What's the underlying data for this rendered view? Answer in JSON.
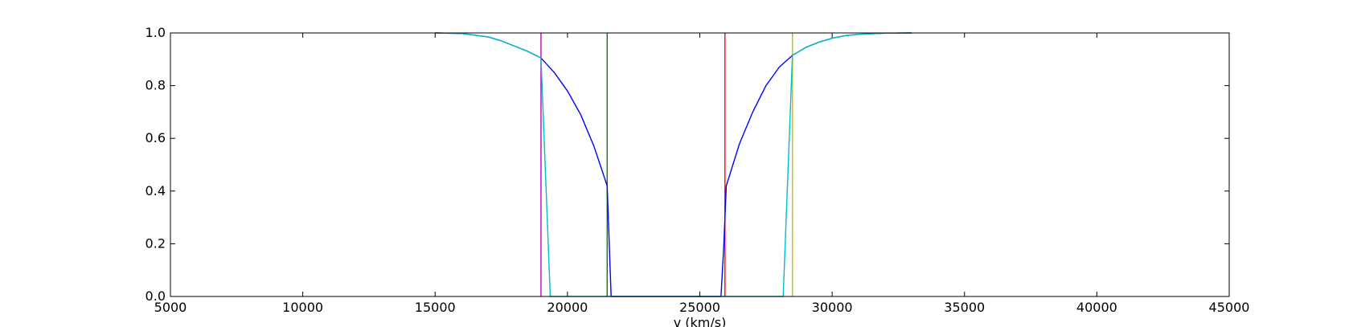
{
  "chart_data": {
    "type": "line",
    "title": "",
    "xlabel": "v (km/s)",
    "ylabel": "",
    "xlim": [
      5000,
      45000
    ],
    "ylim": [
      0.0,
      1.0
    ],
    "grid": false,
    "x_ticks": [
      5000,
      10000,
      15000,
      20000,
      25000,
      30000,
      35000,
      40000,
      45000
    ],
    "x_tick_labels": [
      "5000",
      "10000",
      "15000",
      "20000",
      "25000",
      "30000",
      "35000",
      "40000",
      "45000"
    ],
    "y_ticks": [
      0.0,
      0.2,
      0.4,
      0.6,
      0.8,
      1.0
    ],
    "y_tick_labels": [
      "0.0",
      "0.2",
      "0.4",
      "0.6",
      "0.8",
      "1.0"
    ],
    "series": [
      {
        "color": "#0000ff",
        "x": [
          15000,
          16000,
          17000,
          17500,
          18000,
          18500,
          19000,
          19500,
          20000,
          20500,
          21000,
          21500,
          21650,
          25800,
          25900,
          26000,
          26500,
          27000,
          27500,
          28000,
          28500,
          29000,
          29500,
          30000,
          30500,
          31000,
          32000,
          33000
        ],
        "y": [
          1.0,
          0.998,
          0.985,
          0.97,
          0.95,
          0.93,
          0.905,
          0.85,
          0.78,
          0.69,
          0.57,
          0.42,
          0.0,
          0.0,
          0.18,
          0.42,
          0.58,
          0.7,
          0.8,
          0.87,
          0.915,
          0.945,
          0.965,
          0.98,
          0.99,
          0.995,
          0.999,
          1.0
        ]
      },
      {
        "color": "#00bfbf",
        "x": [
          15000,
          16000,
          17000,
          17500,
          18000,
          18500,
          19000,
          19350,
          28150,
          28500,
          29000,
          29500,
          30000,
          30500,
          31000,
          32000,
          33000
        ],
        "y": [
          1.0,
          0.998,
          0.985,
          0.97,
          0.95,
          0.93,
          0.905,
          0.0,
          0.0,
          0.915,
          0.945,
          0.965,
          0.98,
          0.99,
          0.995,
          0.999,
          1.0
        ]
      }
    ],
    "vertical_lines": [
      {
        "x": 19000,
        "color": "#bf00bf"
      },
      {
        "x": 21500,
        "color": "#008000"
      },
      {
        "x": 25950,
        "color": "#ff0000"
      },
      {
        "x": 28500,
        "color": "#bfbf00"
      }
    ]
  }
}
